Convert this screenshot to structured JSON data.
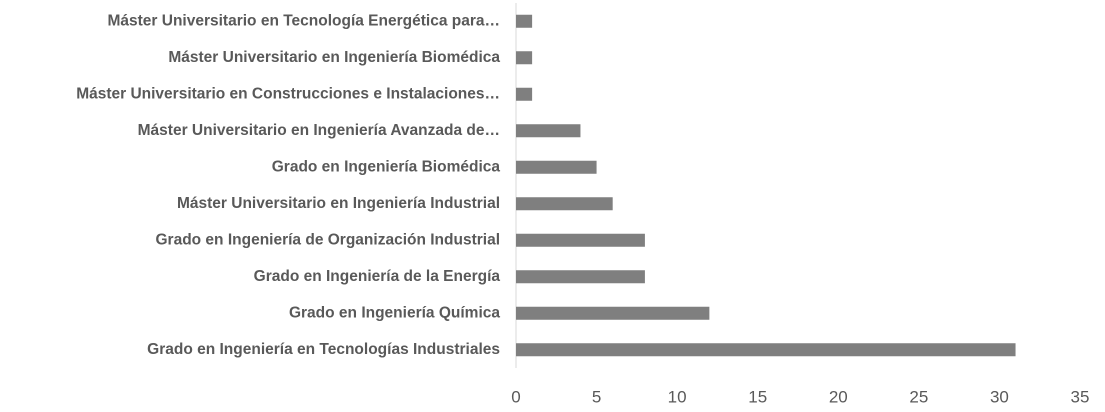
{
  "chart_data": {
    "type": "bar",
    "orientation": "horizontal",
    "categories": [
      "Máster Universitario en Tecnología Energética para…",
      "Máster Universitario en Ingeniería Biomédica",
      "Máster Universitario en Construcciones e Instalaciones…",
      "Máster Universitario en Ingeniería Avanzada de…",
      "Grado en Ingeniería Biomédica",
      "Máster Universitario en Ingeniería Industrial",
      "Grado en Ingeniería de Organización Industrial",
      "Grado en Ingeniería de la Energía",
      "Grado en Ingeniería Química",
      "Grado en Ingeniería en Tecnologías Industriales"
    ],
    "values": [
      1,
      1,
      1,
      4,
      5,
      6,
      8,
      8,
      12,
      31
    ],
    "color": "#7f7f7f",
    "xlim": [
      0,
      35
    ],
    "xticks": [
      0,
      5,
      10,
      15,
      20,
      25,
      30,
      35
    ],
    "grid": false
  }
}
